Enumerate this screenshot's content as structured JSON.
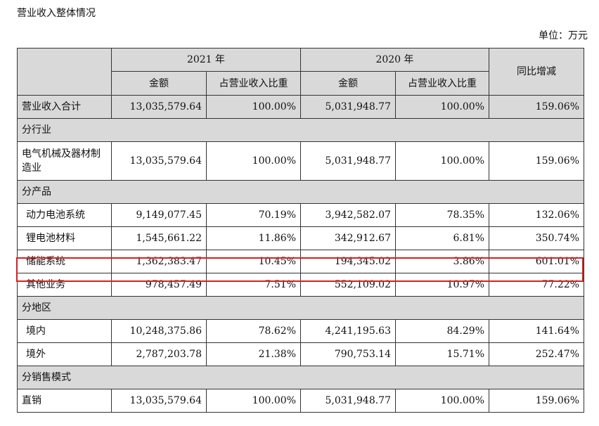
{
  "title": "营业收入整体情况",
  "unit": "单位：万元",
  "header": {
    "y2021": "2021 年",
    "y2020": "2020 年",
    "amount": "金额",
    "ratio": "占营业收入比重",
    "yoy": "同比增减"
  },
  "rows": [
    {
      "label": "营业收入合计",
      "a21": "13,035,579.64",
      "r21": "100.00%",
      "a20": "5,031,948.77",
      "r20": "100.00%",
      "yoy": "159.06%"
    },
    {
      "section": "分行业"
    },
    {
      "label": "电气机械及器材制造业",
      "a21": "13,035,579.64",
      "r21": "100.00%",
      "a20": "5,031,948.77",
      "r20": "100.00%",
      "yoy": "159.06%"
    },
    {
      "section": "分产品"
    },
    {
      "label": "动力电池系统",
      "a21": "9,149,077.45",
      "r21": "70.19%",
      "a20": "3,942,582.07",
      "r20": "78.35%",
      "yoy": "132.06%"
    },
    {
      "label": "锂电池材料",
      "a21": "1,545,661.22",
      "r21": "11.86%",
      "a20": "342,912.67",
      "r20": "6.81%",
      "yoy": "350.74%"
    },
    {
      "label": "储能系统",
      "a21": "1,362,383.47",
      "r21": "10.45%",
      "a20": "194,345.02",
      "r20": "3.86%",
      "yoy": "601.01%"
    },
    {
      "label": "其他业务",
      "a21": "978,457.49",
      "r21": "7.51%",
      "a20": "552,109.02",
      "r20": "10.97%",
      "yoy": "77.22%"
    },
    {
      "section": "分地区"
    },
    {
      "label": "境内",
      "a21": "10,248,375.86",
      "r21": "78.62%",
      "a20": "4,241,195.63",
      "r20": "84.29%",
      "yoy": "141.64%"
    },
    {
      "label": "境外",
      "a21": "2,787,203.78",
      "r21": "21.38%",
      "a20": "790,753.14",
      "r20": "15.71%",
      "yoy": "252.47%"
    },
    {
      "section": "分销售模式"
    },
    {
      "label": "直销",
      "a21": "13,035,579.64",
      "r21": "100.00%",
      "a20": "5,031,948.77",
      "r20": "100.00%",
      "yoy": "159.06%"
    }
  ]
}
